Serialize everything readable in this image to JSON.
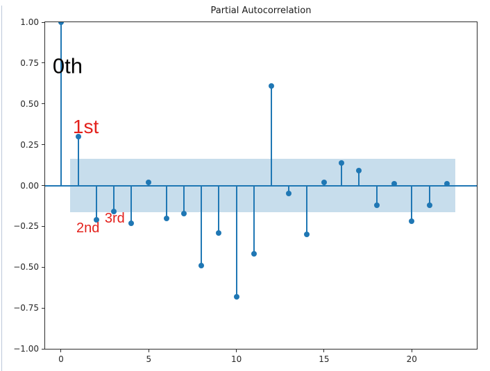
{
  "figure": {
    "title": "Partial Autocorrelation"
  },
  "chart_data": {
    "type": "stem",
    "title": "Partial Autocorrelation",
    "xlabel": "",
    "ylabel": "",
    "grid": false,
    "legend": null,
    "x": [
      0,
      1,
      2,
      3,
      4,
      5,
      6,
      7,
      8,
      9,
      10,
      11,
      12,
      13,
      14,
      15,
      16,
      17,
      18,
      19,
      20,
      21,
      22
    ],
    "values": [
      1.0,
      0.3,
      -0.21,
      -0.16,
      -0.23,
      0.02,
      -0.2,
      -0.17,
      -0.49,
      -0.29,
      -0.68,
      -0.42,
      0.61,
      -0.05,
      -0.3,
      0.02,
      0.14,
      0.09,
      -0.12,
      0.01,
      -0.22,
      -0.12,
      0.01
    ],
    "xlim": [
      -0.91,
      23.71
    ],
    "ylim": [
      -1.0,
      1.0
    ],
    "xticks": {
      "values": [
        0,
        5,
        10,
        15,
        20
      ],
      "labels": [
        "0",
        "5",
        "10",
        "15",
        "20"
      ]
    },
    "yticks": {
      "values": [
        1.0,
        0.75,
        0.5,
        0.25,
        0.0,
        -0.25,
        -0.5,
        -0.75,
        -1.0
      ],
      "labels": [
        "1.00",
        "0.75",
        "0.50",
        "0.25",
        "0.00",
        "−0.25",
        "−0.50",
        "−0.75",
        "−1.00"
      ]
    },
    "confidence_band": {
      "lo": -0.165,
      "hi": 0.165,
      "x_start": 0.5,
      "x_end": 22.5
    },
    "colors": {
      "stem": "#1f77b4",
      "marker": "#1f77b4",
      "baseline": "#1f77b4",
      "band": "rgba(31,119,180,0.25)",
      "annotation_red": "#e3211c",
      "annotation_black": "#000000"
    },
    "annotations": [
      {
        "text": "0th",
        "x": -0.48,
        "y_top": 0.78,
        "color": "black",
        "font_px": 31
      },
      {
        "text": "1st",
        "x": 0.67,
        "y_top": 0.4,
        "color": "red",
        "font_px": 28
      },
      {
        "text": "2nd",
        "x": 0.87,
        "y_top": -0.23,
        "color": "red",
        "font_px": 20
      },
      {
        "text": "3rd",
        "x": 2.49,
        "y_top": -0.17,
        "color": "red",
        "font_px": 20
      }
    ]
  }
}
